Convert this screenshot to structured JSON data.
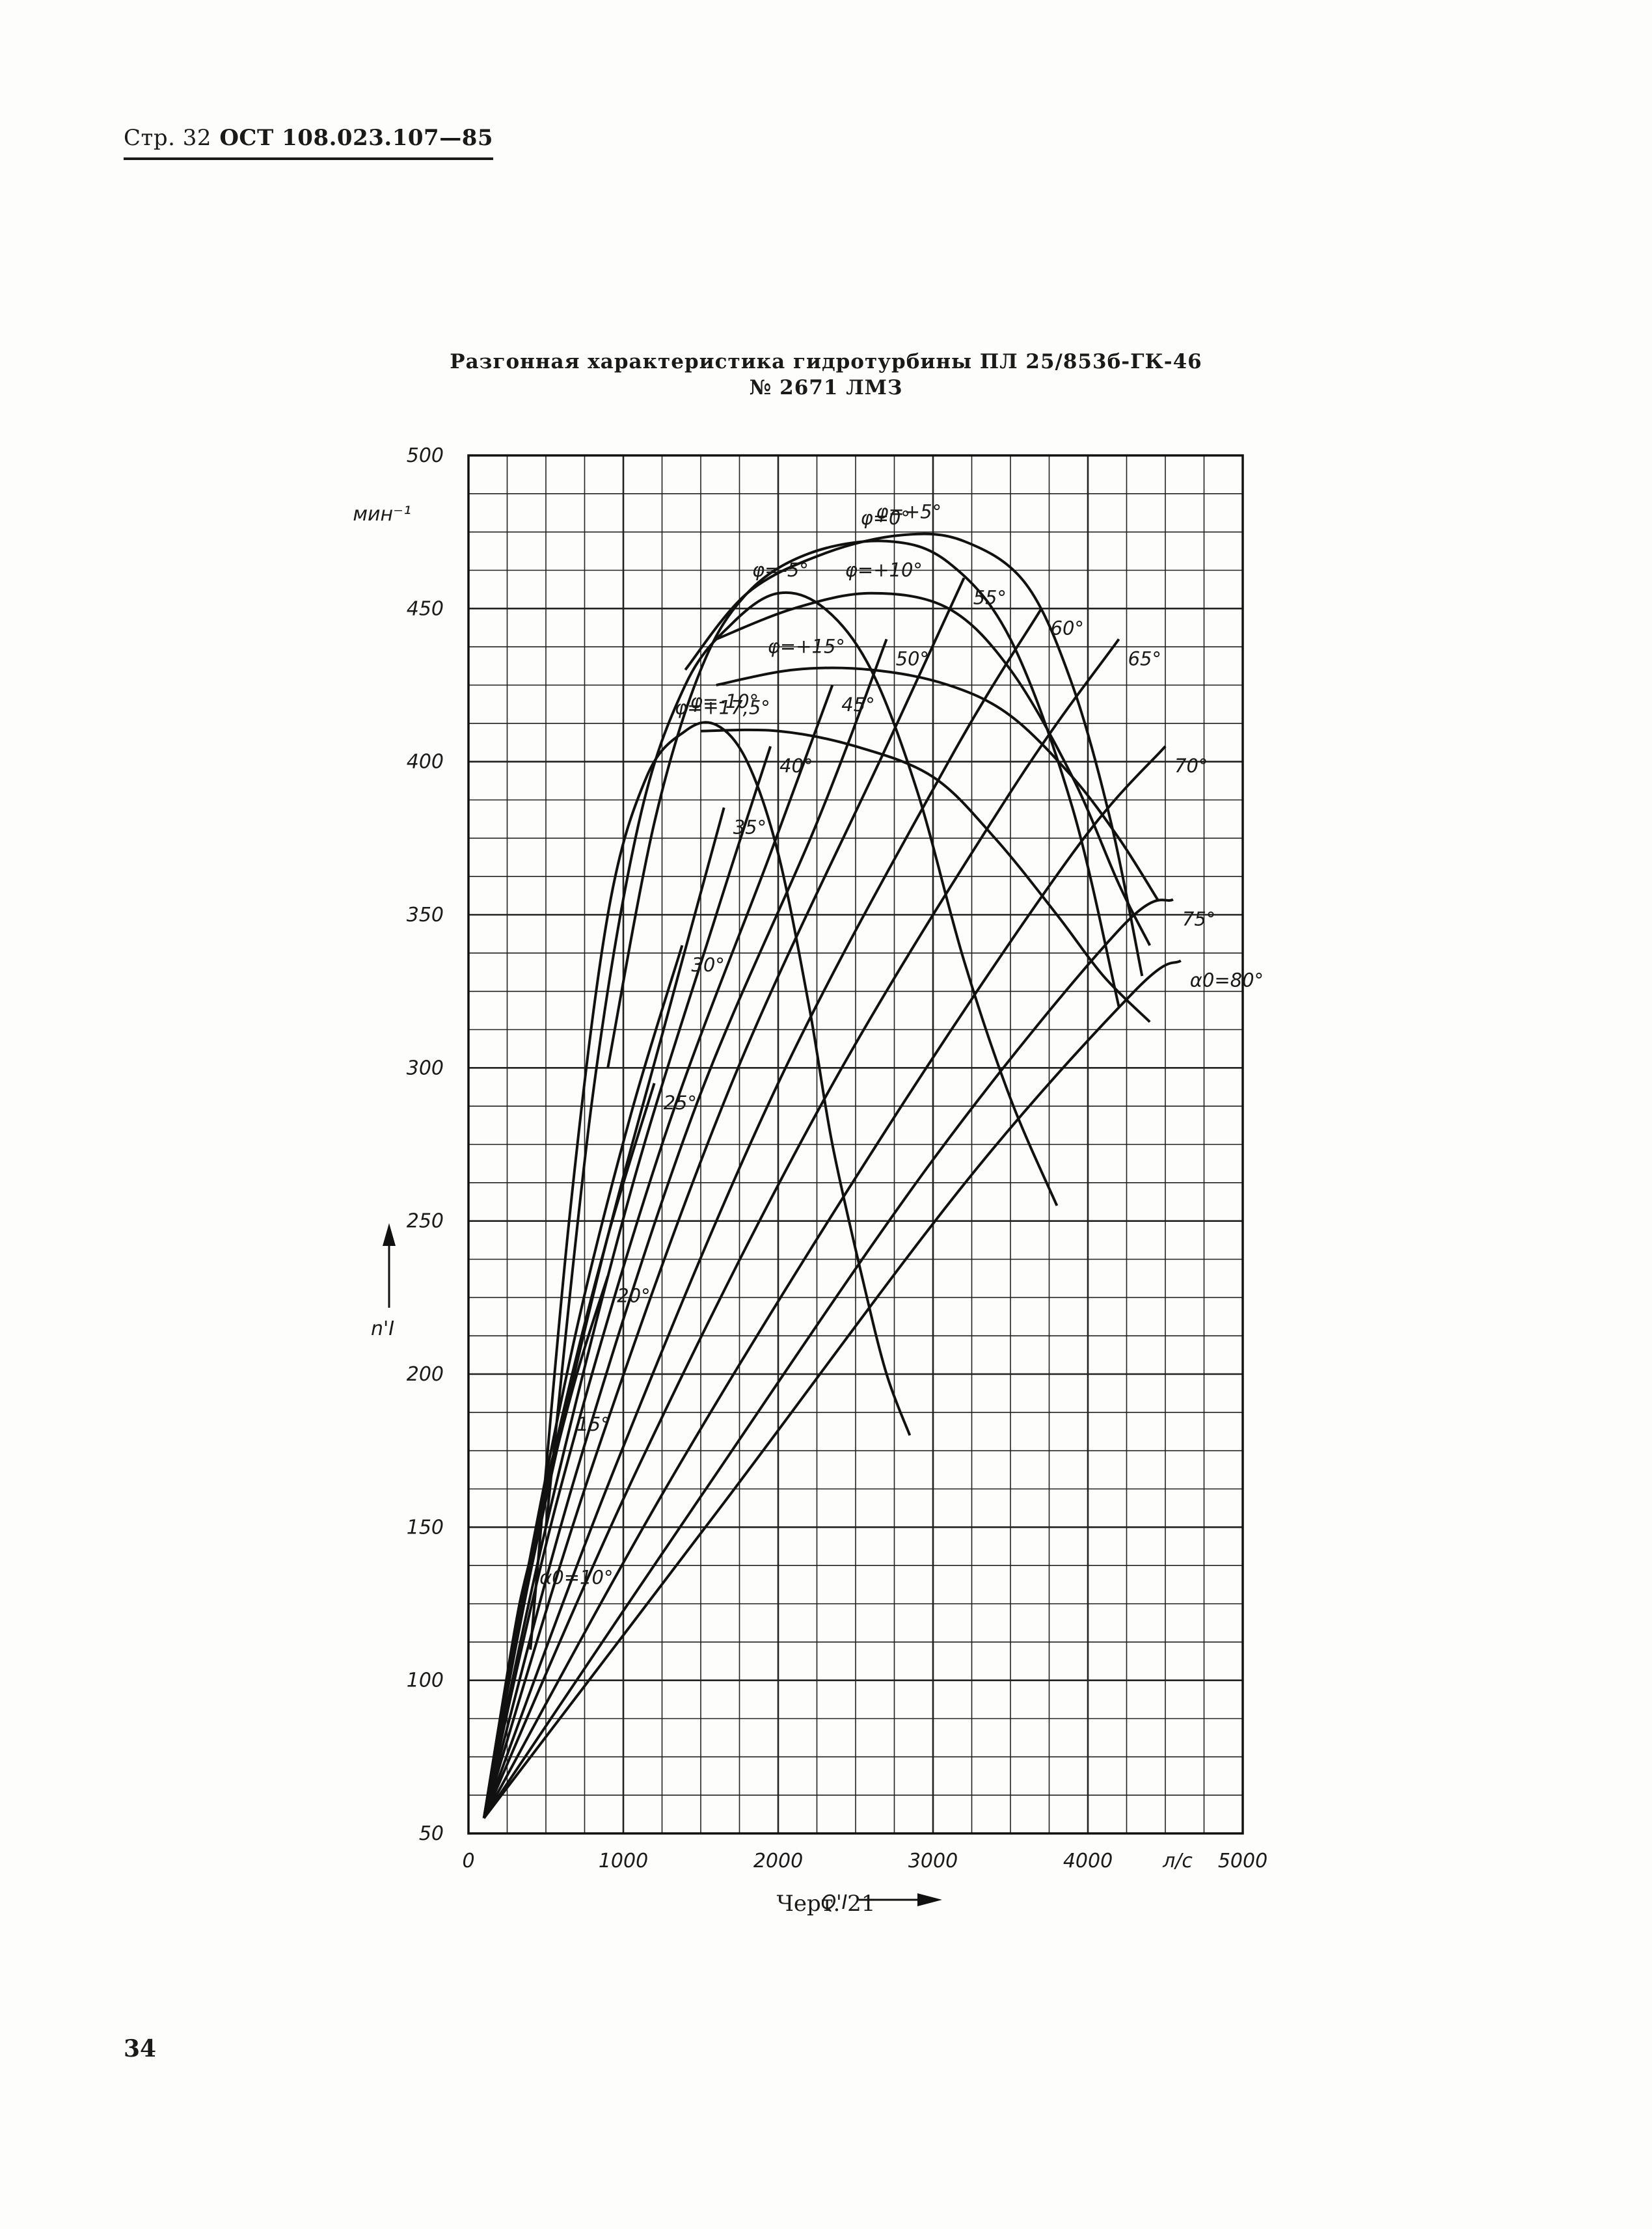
{
  "header": {
    "page": "Стр. 32",
    "doc": "ОСТ 108.023.107—85"
  },
  "title": {
    "line1": "Разгонная характеристика гидротурбины ПЛ 25/853б-ГК-46",
    "line2": "№ 2671 ЛМЗ"
  },
  "caption": "Черт. 21",
  "page_number": "34",
  "chart_data": {
    "type": "line",
    "title": "Разгонная характеристика гидротурбины ПЛ 25/853б-ГК-46 № 2671 ЛМЗ",
    "xlabel": "Q'I",
    "xunit": "л/с",
    "ylabel": "n'I",
    "yunit": "мин⁻¹",
    "xlim": [
      0,
      5000
    ],
    "ylim": [
      50,
      500
    ],
    "x_ticks": [
      "0",
      "1000",
      "2000",
      "3000",
      "4000",
      "5000"
    ],
    "y_ticks": [
      "50",
      "100",
      "150",
      "200",
      "250",
      "300",
      "350",
      "400",
      "450",
      "500"
    ],
    "grid": true,
    "guide_vane_curves": [
      {
        "label": "α0=10°",
        "points": [
          [
            100,
            55
          ],
          [
            180,
            80
          ],
          [
            260,
            105
          ],
          [
            330,
            125
          ],
          [
            400,
            140
          ]
        ]
      },
      {
        "label": "15°",
        "points": [
          [
            100,
            55
          ],
          [
            230,
            95
          ],
          [
            380,
            135
          ],
          [
            520,
            168
          ],
          [
            640,
            190
          ]
        ]
      },
      {
        "label": "20°",
        "points": [
          [
            100,
            55
          ],
          [
            300,
            110
          ],
          [
            500,
            160
          ],
          [
            700,
            200
          ],
          [
            900,
            232
          ]
        ]
      },
      {
        "label": "25°",
        "points": [
          [
            100,
            55
          ],
          [
            330,
            120
          ],
          [
            600,
            185
          ],
          [
            900,
            245
          ],
          [
            1200,
            295
          ]
        ]
      },
      {
        "label": "30°",
        "points": [
          [
            100,
            55
          ],
          [
            360,
            130
          ],
          [
            700,
            215
          ],
          [
            1050,
            285
          ],
          [
            1380,
            340
          ]
        ]
      },
      {
        "label": "35°",
        "points": [
          [
            100,
            55
          ],
          [
            420,
            140
          ],
          [
            850,
            235
          ],
          [
            1300,
            320
          ],
          [
            1650,
            385
          ]
        ]
      },
      {
        "label": "40°",
        "points": [
          [
            100,
            55
          ],
          [
            500,
            150
          ],
          [
            1050,
            260
          ],
          [
            1600,
            350
          ],
          [
            1950,
            405
          ]
        ]
      },
      {
        "label": "45°",
        "points": [
          [
            100,
            55
          ],
          [
            580,
            160
          ],
          [
            1250,
            275
          ],
          [
            1950,
            370
          ],
          [
            2350,
            425
          ]
        ]
      },
      {
        "label": "50°",
        "points": [
          [
            100,
            55
          ],
          [
            680,
            165
          ],
          [
            1450,
            285
          ],
          [
            2250,
            380
          ],
          [
            2700,
            440
          ]
        ]
      },
      {
        "label": "55°",
        "points": [
          [
            100,
            55
          ],
          [
            800,
            170
          ],
          [
            1700,
            295
          ],
          [
            2700,
            405
          ],
          [
            3200,
            460
          ]
        ]
      },
      {
        "label": "60°",
        "points": [
          [
            100,
            55
          ],
          [
            950,
            170
          ],
          [
            2000,
            295
          ],
          [
            3100,
            400
          ],
          [
            3700,
            450
          ]
        ]
      },
      {
        "label": "65°",
        "points": [
          [
            100,
            55
          ],
          [
            1100,
            170
          ],
          [
            2300,
            290
          ],
          [
            3500,
            390
          ],
          [
            4200,
            440
          ]
        ]
      },
      {
        "label": "70°",
        "points": [
          [
            100,
            55
          ],
          [
            1300,
            165
          ],
          [
            2700,
            280
          ],
          [
            3900,
            370
          ],
          [
            4500,
            405
          ]
        ]
      },
      {
        "label": "75°",
        "points": [
          [
            100,
            55
          ],
          [
            1500,
            160
          ],
          [
            3000,
            270
          ],
          [
            4200,
            345
          ],
          [
            4550,
            355
          ]
        ]
      },
      {
        "label": "α0=80°",
        "points": [
          [
            100,
            55
          ],
          [
            1650,
            158
          ],
          [
            3200,
            262
          ],
          [
            4300,
            325
          ],
          [
            4600,
            335
          ]
        ]
      }
    ],
    "blade_angle_curves": [
      {
        "label": "φ=-10°",
        "points": [
          [
            400,
            110
          ],
          [
            650,
            250
          ],
          [
            900,
            350
          ],
          [
            1150,
            395
          ],
          [
            1400,
            410
          ],
          [
            1600,
            412
          ],
          [
            1800,
            400
          ],
          [
            2000,
            370
          ],
          [
            2200,
            320
          ],
          [
            2350,
            275
          ],
          [
            2550,
            230
          ],
          [
            2700,
            200
          ],
          [
            2850,
            180
          ]
        ]
      },
      {
        "label": "φ=-5°",
        "points": [
          [
            500,
            150
          ],
          [
            800,
            290
          ],
          [
            1100,
            380
          ],
          [
            1400,
            425
          ],
          [
            1700,
            445
          ],
          [
            2000,
            455
          ],
          [
            2300,
            450
          ],
          [
            2600,
            430
          ],
          [
            2900,
            390
          ],
          [
            3200,
            335
          ],
          [
            3500,
            290
          ],
          [
            3800,
            255
          ]
        ]
      },
      {
        "label": "φ=0°",
        "points": [
          [
            900,
            300
          ],
          [
            1200,
            380
          ],
          [
            1500,
            430
          ],
          [
            1800,
            455
          ],
          [
            2200,
            468
          ],
          [
            2700,
            472
          ],
          [
            3100,
            465
          ],
          [
            3500,
            440
          ],
          [
            3900,
            385
          ],
          [
            4200,
            320
          ]
        ]
      },
      {
        "label": "φ=+5°",
        "points": [
          [
            1400,
            430
          ],
          [
            1800,
            455
          ],
          [
            2300,
            468
          ],
          [
            2800,
            474
          ],
          [
            3200,
            472
          ],
          [
            3600,
            458
          ],
          [
            3900,
            425
          ],
          [
            4150,
            380
          ],
          [
            4350,
            330
          ]
        ]
      },
      {
        "label": "φ=+10°",
        "points": [
          [
            1600,
            440
          ],
          [
            2100,
            450
          ],
          [
            2600,
            455
          ],
          [
            3100,
            450
          ],
          [
            3500,
            430
          ],
          [
            3900,
            395
          ],
          [
            4200,
            360
          ],
          [
            4400,
            340
          ]
        ]
      },
      {
        "label": "φ=+15°",
        "points": [
          [
            1600,
            425
          ],
          [
            2100,
            430
          ],
          [
            2600,
            430
          ],
          [
            3100,
            425
          ],
          [
            3500,
            415
          ],
          [
            3900,
            395
          ],
          [
            4200,
            375
          ],
          [
            4450,
            355
          ]
        ]
      },
      {
        "label": "φ=+17,5°",
        "points": [
          [
            1500,
            410
          ],
          [
            2000,
            410
          ],
          [
            2500,
            405
          ],
          [
            3000,
            395
          ],
          [
            3400,
            375
          ],
          [
            3800,
            350
          ],
          [
            4100,
            330
          ],
          [
            4400,
            315
          ]
        ]
      }
    ]
  }
}
